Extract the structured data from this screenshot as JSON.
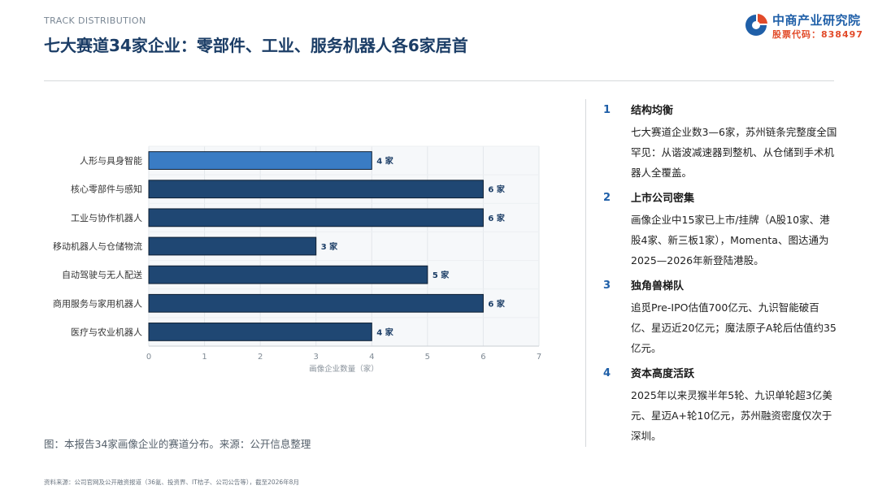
{
  "header": {
    "kicker": "TRACK DISTRIBUTION",
    "title": "七大赛道34家企业：零部件、工业、服务机器人各6家居首"
  },
  "logo": {
    "name": "中商产业研究院",
    "code": "股票代码：838497",
    "colors": {
      "blue": "#1f5fa8",
      "orange": "#e24b2a"
    }
  },
  "chart_data": {
    "type": "bar",
    "orientation": "horizontal",
    "categories": [
      "人形与具身智能",
      "核心零部件与感知",
      "工业与协作机器人",
      "移动机器人与仓储物流",
      "自动驾驶与无人配送",
      "商用服务与家用机器人",
      "医疗与农业机器人"
    ],
    "values": [
      4,
      6,
      6,
      3,
      5,
      6,
      4
    ],
    "data_labels": [
      "4 家",
      "6 家",
      "6 家",
      "3 家",
      "5 家",
      "6 家",
      "4 家"
    ],
    "highlight_index": 0,
    "xlabel": "画像企业数量（家）",
    "xlim": [
      0,
      7
    ],
    "xticks": [
      "0",
      "1",
      "2",
      "3",
      "4",
      "5",
      "6",
      "7"
    ],
    "grid": true,
    "colors": {
      "highlight": "#3a7cc4",
      "default": "#1f4773",
      "edge": "#0e1f33"
    }
  },
  "caption": "图：本报告34家画像企业的赛道分布。来源：公开信息整理",
  "source": "资料来源：公司官网及公开融资报道（36氪、投资界、IT桔子、公司公告等），截至2026年8月",
  "points": [
    {
      "num": "1",
      "head": "结构均衡",
      "body": "七大赛道企业数3—6家，苏州链条完整度全国罕见：从谐波减速器到整机、从仓储到手术机器人全覆盖。"
    },
    {
      "num": "2",
      "head": "上市公司密集",
      "body": "画像企业中15家已上市/挂牌（A股10家、港股4家、新三板1家），Momenta、图达通为2025—2026年新登陆港股。"
    },
    {
      "num": "3",
      "head": "独角兽梯队",
      "body": "追觅Pre-IPO估值700亿元、九识智能破百亿、星迈近20亿元；魔法原子A轮后估值约35亿元。"
    },
    {
      "num": "4",
      "head": "资本高度活跃",
      "body": "2025年以来灵猴半年5轮、九识单轮超3亿美元、星迈A+轮10亿元，苏州融资密度仅次于深圳。"
    }
  ]
}
